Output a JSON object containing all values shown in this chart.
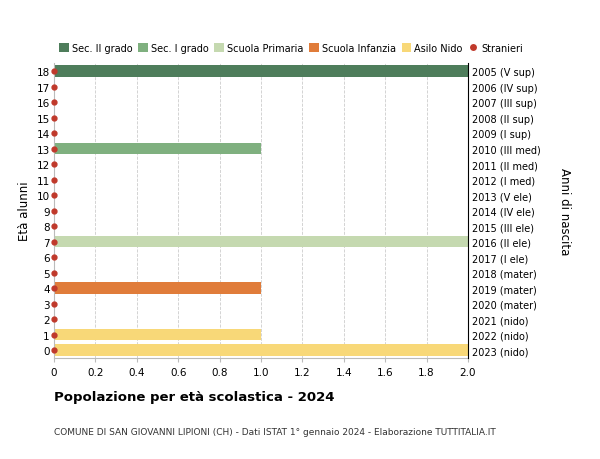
{
  "ages": [
    18,
    17,
    16,
    15,
    14,
    13,
    12,
    11,
    10,
    9,
    8,
    7,
    6,
    5,
    4,
    3,
    2,
    1,
    0
  ],
  "years": [
    "2005 (V sup)",
    "2006 (IV sup)",
    "2007 (III sup)",
    "2008 (II sup)",
    "2009 (I sup)",
    "2010 (III med)",
    "2011 (II med)",
    "2012 (I med)",
    "2013 (V ele)",
    "2014 (IV ele)",
    "2015 (III ele)",
    "2016 (II ele)",
    "2017 (I ele)",
    "2018 (mater)",
    "2019 (mater)",
    "2020 (mater)",
    "2021 (nido)",
    "2022 (nido)",
    "2023 (nido)"
  ],
  "bar_values": [
    2.0,
    0,
    0,
    0,
    0,
    1.0,
    0,
    0,
    0,
    0,
    0,
    2.0,
    0,
    0,
    1.0,
    0,
    0,
    1.0,
    2.0
  ],
  "bar_colors": [
    "#4e7d5b",
    "#4e7d5b",
    "#4e7d5b",
    "#4e7d5b",
    "#4e7d5b",
    "#7fb07f",
    "#7fb07f",
    "#7fb07f",
    "#c5d9b0",
    "#c5d9b0",
    "#c5d9b0",
    "#c5d9b0",
    "#c5d9b0",
    "#e07c3a",
    "#e07c3a",
    "#e07c3a",
    "#f8d878",
    "#f8d878",
    "#f8d878"
  ],
  "stranieri_color": "#c0392b",
  "legend_labels": [
    "Sec. II grado",
    "Sec. I grado",
    "Scuola Primaria",
    "Scuola Infanzia",
    "Asilo Nido",
    "Stranieri"
  ],
  "legend_colors": [
    "#4e7d5b",
    "#7fb07f",
    "#c5d9b0",
    "#e07c3a",
    "#f8d878",
    "#c0392b"
  ],
  "ylabel": "Età alunni",
  "ylabel_right": "Anni di nascita",
  "title": "Popolazione per età scolastica - 2024",
  "subtitle": "COMUNE DI SAN GIOVANNI LIPIONI (CH) - Dati ISTAT 1° gennaio 2024 - Elaborazione TUTTITALIA.IT",
  "xlim": [
    0,
    2.0
  ],
  "xticks": [
    0,
    0.2,
    0.4,
    0.6,
    0.8,
    1.0,
    1.2,
    1.4,
    1.6,
    1.8,
    2.0
  ],
  "xtick_labels": [
    "0",
    "0.2",
    "0.4",
    "0.6",
    "0.8",
    "1.0",
    "1.2",
    "1.4",
    "1.6",
    "1.8",
    "2.0"
  ],
  "background_color": "#ffffff",
  "grid_color": "#cccccc",
  "bar_height": 0.75
}
